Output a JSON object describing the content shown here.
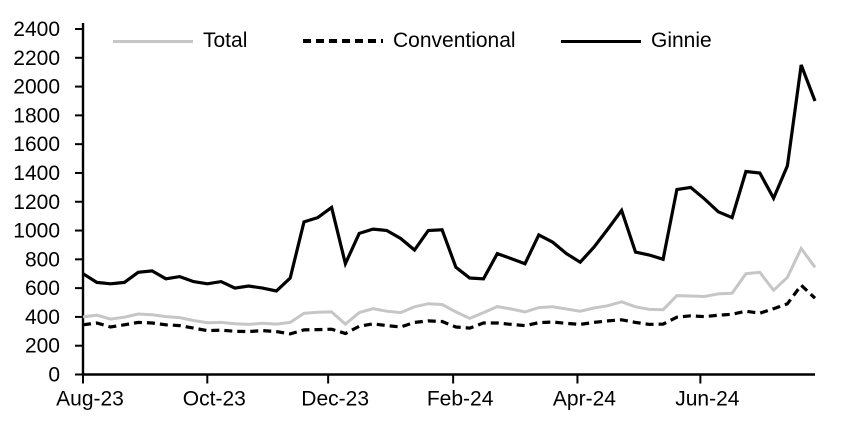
{
  "colors": {
    "background": "#ffffff",
    "axis": "#000000",
    "text": "#000000",
    "total_gray": "#c6c6c6",
    "line_black": "#000000"
  },
  "chart_data": {
    "type": "line",
    "title": "",
    "xlabel": "",
    "ylabel": "",
    "grid": false,
    "legend_position": "top",
    "x_axis": {
      "tick_labels": [
        "Aug-23",
        "Oct-23",
        "Dec-23",
        "Feb-24",
        "Apr-24",
        "Jun-24"
      ],
      "tick_week_positions": [
        0,
        9,
        17.75,
        26.8,
        35.8,
        44.7
      ]
    },
    "y_axis": {
      "min": 0,
      "max": 2400,
      "step": 200,
      "tick_labels": [
        "0",
        "200",
        "400",
        "600",
        "800",
        "1000",
        "1200",
        "1400",
        "1600",
        "1800",
        "2000",
        "2200",
        "2400"
      ]
    },
    "series": [
      {
        "name": "Total",
        "color": "#c6c6c6",
        "dash": "solid",
        "values": [
          400,
          412,
          385,
          398,
          420,
          415,
          402,
          395,
          375,
          360,
          362,
          352,
          348,
          356,
          350,
          362,
          425,
          432,
          435,
          350,
          430,
          457,
          440,
          430,
          470,
          492,
          486,
          435,
          390,
          430,
          472,
          455,
          435,
          465,
          470,
          455,
          440,
          462,
          478,
          505,
          470,
          452,
          450,
          548,
          545,
          542,
          560,
          565,
          700,
          710,
          585,
          675,
          875,
          745
        ]
      },
      {
        "name": "Conventional",
        "color": "#000000",
        "dash": "dashed",
        "values": [
          345,
          358,
          330,
          345,
          362,
          358,
          345,
          340,
          322,
          305,
          308,
          300,
          298,
          305,
          298,
          282,
          310,
          312,
          315,
          285,
          335,
          352,
          340,
          330,
          362,
          372,
          368,
          330,
          322,
          358,
          358,
          348,
          340,
          360,
          365,
          355,
          348,
          362,
          372,
          380,
          362,
          348,
          350,
          398,
          408,
          402,
          412,
          418,
          440,
          426,
          457,
          491,
          620,
          530
        ]
      },
      {
        "name": "Ginnie",
        "color": "#000000",
        "dash": "solid",
        "values": [
          700,
          640,
          630,
          640,
          710,
          720,
          665,
          680,
          645,
          630,
          645,
          600,
          615,
          600,
          580,
          670,
          1060,
          1090,
          1160,
          770,
          980,
          1010,
          1000,
          945,
          865,
          1000,
          1005,
          745,
          670,
          665,
          840,
          805,
          770,
          970,
          920,
          840,
          780,
          885,
          1010,
          1140,
          850,
          830,
          800,
          1285,
          1300,
          1220,
          1130,
          1090,
          1410,
          1400,
          1225,
          1450,
          2150,
          1900
        ]
      }
    ]
  }
}
